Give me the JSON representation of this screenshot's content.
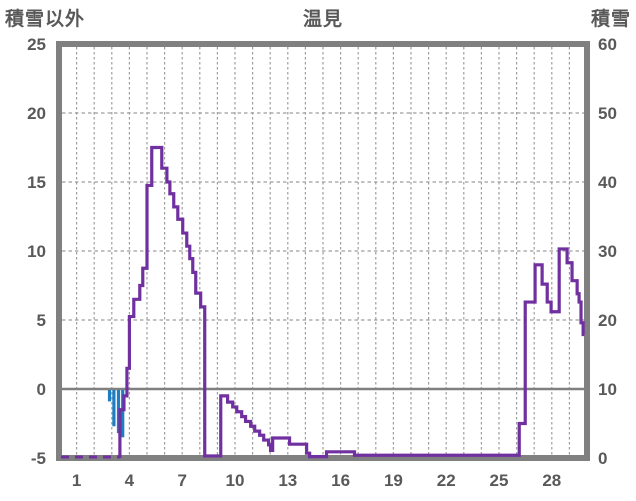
{
  "header": {
    "left_axis_title": "積雪以外",
    "chart_title": "温見",
    "right_axis_title": "積雪"
  },
  "chart_data": {
    "type": "line",
    "title": "温見",
    "grid": true,
    "left_axis": {
      "label": "積雪以外",
      "min": -5,
      "max": 25,
      "ticks": [
        25,
        20,
        15,
        10,
        5,
        0,
        -5
      ]
    },
    "right_axis": {
      "label": "積雪",
      "min": 0,
      "max": 60,
      "ticks": [
        60,
        50,
        40,
        30,
        20,
        10,
        0
      ]
    },
    "x_axis": {
      "min": 0,
      "max": 30,
      "tick_labels": [
        1,
        4,
        7,
        10,
        13,
        16,
        19,
        22,
        25,
        28
      ],
      "gridline_every_day": true
    },
    "zero_line_left_value": 0,
    "series": [
      {
        "name": "積雪",
        "axis": "right",
        "style": "step-line",
        "color": "#7030A0",
        "dash_leading_until": 3.46,
        "points": [
          [
            0,
            0
          ],
          [
            3.46,
            7
          ],
          [
            3.69,
            9
          ],
          [
            3.86,
            13
          ],
          [
            4.0,
            20.5
          ],
          [
            4.25,
            23
          ],
          [
            4.59,
            25
          ],
          [
            4.76,
            27.5
          ],
          [
            5.0,
            39.5
          ],
          [
            5.27,
            45
          ],
          [
            5.84,
            42
          ],
          [
            6.13,
            40
          ],
          [
            6.3,
            38.3
          ],
          [
            6.52,
            36.4
          ],
          [
            6.75,
            34.6
          ],
          [
            7.03,
            32.6
          ],
          [
            7.26,
            30.7
          ],
          [
            7.43,
            28.9
          ],
          [
            7.6,
            26.9
          ],
          [
            7.77,
            23.9
          ],
          [
            8.05,
            21.9
          ],
          [
            8.28,
            0.3
          ],
          [
            9.19,
            9
          ],
          [
            9.58,
            8.1
          ],
          [
            9.87,
            7.4
          ],
          [
            10.1,
            6.7
          ],
          [
            10.38,
            6.0
          ],
          [
            10.6,
            5.3
          ],
          [
            10.89,
            4.6
          ],
          [
            11.12,
            3.9
          ],
          [
            11.4,
            3.3
          ],
          [
            11.63,
            2.6
          ],
          [
            11.91,
            1.9
          ],
          [
            12.02,
            1.1
          ],
          [
            12.14,
            2.9
          ],
          [
            13.1,
            2.0
          ],
          [
            14.07,
            0.7
          ],
          [
            14.24,
            0.2
          ],
          [
            15.2,
            0.9
          ],
          [
            16.79,
            0.4
          ],
          [
            26.15,
            5
          ],
          [
            26.49,
            22.6
          ],
          [
            27.05,
            28
          ],
          [
            27.45,
            25.2
          ],
          [
            27.74,
            22.6
          ],
          [
            27.96,
            21.2
          ],
          [
            28.42,
            30.3
          ],
          [
            28.87,
            28.3
          ],
          [
            29.15,
            25.7
          ],
          [
            29.44,
            23.8
          ],
          [
            29.55,
            22.6
          ],
          [
            29.66,
            19.6
          ],
          [
            29.78,
            17.9
          ]
        ],
        "end_day": 29.85
      },
      {
        "name": "積雪以外",
        "axis": "left",
        "style": "bar",
        "color": "#1F7EC2",
        "bars": [
          {
            "day": 2.87,
            "value": -0.9
          },
          {
            "day": 3.12,
            "value": -2.7
          },
          {
            "day": 3.38,
            "value": -3.2
          },
          {
            "day": 3.62,
            "value": -3.5
          }
        ]
      }
    ],
    "colors": {
      "border": "#808080",
      "gridline": "#9e9e9e",
      "zero_line": "#808080",
      "text": "#595959",
      "background": "#ffffff"
    }
  }
}
